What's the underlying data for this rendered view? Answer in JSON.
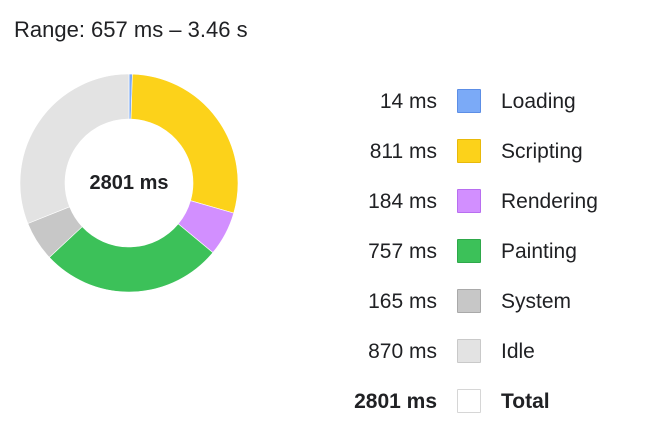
{
  "range_text": "Range: 657 ms – 3.46 s",
  "chart_data": {
    "type": "pie",
    "center_label": "2801 ms",
    "slices": [
      {
        "name": "Loading",
        "value": 14,
        "display": "14 ms",
        "color": "#7baaf7",
        "border": "#5c8ee6"
      },
      {
        "name": "Scripting",
        "value": 811,
        "display": "811 ms",
        "color": "#fcd21a",
        "border": "#e8b90a"
      },
      {
        "name": "Rendering",
        "value": 184,
        "display": "184 ms",
        "color": "#d28fff",
        "border": "#b86ef0"
      },
      {
        "name": "Painting",
        "value": 757,
        "display": "757 ms",
        "color": "#3cc159",
        "border": "#2ea84a"
      },
      {
        "name": "System",
        "value": 165,
        "display": "165 ms",
        "color": "#c7c7c7",
        "border": "#a9a9a9"
      },
      {
        "name": "Idle",
        "value": 870,
        "display": "870 ms",
        "color": "#e3e3e3",
        "border": "#c9c9c9"
      }
    ],
    "total": {
      "name": "Total",
      "value": 2801,
      "display": "2801 ms",
      "color": "#ffffff",
      "border": "#d6d6d6"
    }
  }
}
